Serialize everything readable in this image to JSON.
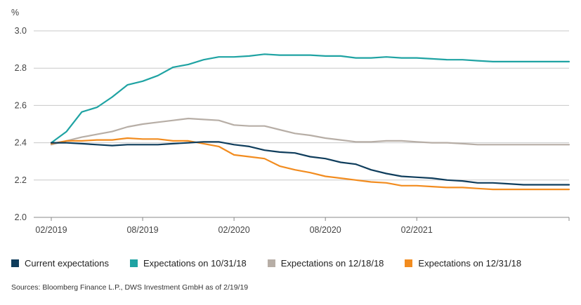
{
  "chart_data": {
    "type": "line",
    "ylabel": "%",
    "ylim": [
      2.0,
      3.0
    ],
    "yticks": [
      "3.0",
      "2.8",
      "2.6",
      "2.4",
      "2.2",
      "2.0"
    ],
    "xticks": [
      "02/2019",
      "08/2019",
      "02/2020",
      "08/2020",
      "02/2021"
    ],
    "x": [
      0,
      1,
      2,
      3,
      4,
      5,
      6,
      7,
      8,
      9,
      10,
      11,
      12,
      13,
      14,
      15,
      16,
      17,
      18,
      19,
      20,
      21,
      22,
      23,
      24,
      25,
      26,
      27,
      28,
      29,
      30,
      31,
      32,
      33,
      34
    ],
    "grid": "horizontal",
    "legend_position": "bottom",
    "series": [
      {
        "name": "Current expectations",
        "color": "#0f3d5c",
        "values": [
          2.4,
          2.4,
          2.395,
          2.39,
          2.385,
          2.39,
          2.39,
          2.39,
          2.395,
          2.4,
          2.405,
          2.405,
          2.39,
          2.38,
          2.36,
          2.35,
          2.345,
          2.325,
          2.315,
          2.295,
          2.285,
          2.255,
          2.235,
          2.22,
          2.215,
          2.21,
          2.2,
          2.195,
          2.185,
          2.185,
          2.18,
          2.175,
          2.175,
          2.175,
          2.175
        ]
      },
      {
        "name": "Expectations on 10/31/18",
        "color": "#1fa3a3",
        "values": [
          2.4,
          2.46,
          2.565,
          2.59,
          2.645,
          2.71,
          2.73,
          2.76,
          2.805,
          2.82,
          2.845,
          2.86,
          2.86,
          2.865,
          2.875,
          2.87,
          2.87,
          2.87,
          2.865,
          2.865,
          2.855,
          2.855,
          2.86,
          2.855,
          2.855,
          2.85,
          2.845,
          2.845,
          2.84,
          2.835,
          2.835,
          2.835,
          2.835,
          2.835,
          2.835
        ]
      },
      {
        "name": "Expectations on 12/18/18",
        "color": "#b7aea6",
        "values": [
          2.39,
          2.41,
          2.43,
          2.445,
          2.46,
          2.485,
          2.5,
          2.51,
          2.52,
          2.53,
          2.525,
          2.52,
          2.495,
          2.49,
          2.49,
          2.47,
          2.45,
          2.44,
          2.425,
          2.415,
          2.405,
          2.405,
          2.41,
          2.41,
          2.405,
          2.4,
          2.4,
          2.395,
          2.39,
          2.39,
          2.39,
          2.39,
          2.39,
          2.39,
          2.39
        ]
      },
      {
        "name": "Expectations on 12/31/18",
        "color": "#f28c1f",
        "values": [
          2.395,
          2.41,
          2.41,
          2.415,
          2.415,
          2.425,
          2.42,
          2.42,
          2.41,
          2.41,
          2.395,
          2.38,
          2.335,
          2.325,
          2.315,
          2.275,
          2.255,
          2.24,
          2.22,
          2.21,
          2.2,
          2.19,
          2.185,
          2.17,
          2.17,
          2.165,
          2.16,
          2.16,
          2.155,
          2.15,
          2.15,
          2.15,
          2.15,
          2.15,
          2.15
        ]
      }
    ]
  },
  "legend": {
    "items": [
      {
        "label": "Current expectations",
        "color": "#0f3d5c"
      },
      {
        "label": "Expectations on 10/31/18",
        "color": "#1fa3a3"
      },
      {
        "label": "Expectations on 12/18/18",
        "color": "#b7aea6"
      },
      {
        "label": "Expectations on 12/31/18",
        "color": "#f28c1f"
      }
    ]
  },
  "source": "Sources: Bloomberg Finance L.P., DWS Investment GmbH as of 2/19/19"
}
